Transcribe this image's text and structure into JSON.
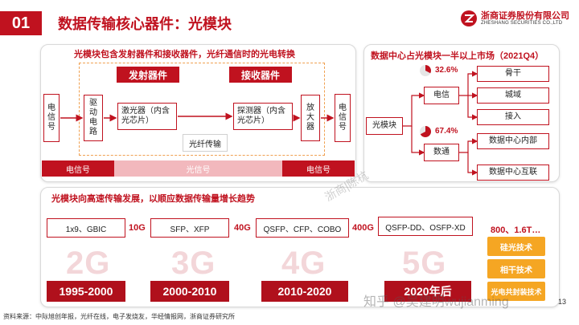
{
  "header": {
    "section_number": "01",
    "title": "数据传输核心器件：光模块",
    "brand_cn": "浙商证券股份有限公司",
    "brand_en": "ZHESHANG SECURITIES CO.,LTD",
    "colors": {
      "accent": "#c0121f",
      "light_band": "#f2b8bd",
      "orange": "#f5a623"
    },
    "logo_icon": "zheshang-logo-icon"
  },
  "diagram": {
    "title": "光模块包含发射器件和接收器件，光纤通信时的光电转换",
    "tx_label": "发射器件",
    "rx_label": "接收器件",
    "left_signal": "电信号",
    "drive_circuit": "驱动电路",
    "laser": "激光器（内含光芯片）",
    "fiber": "光纤传输",
    "detector": "探测器（内含光芯片）",
    "amplifier": "放大器",
    "right_signal": "电信号",
    "band_left": "电信号",
    "band_mid": "光信号",
    "band_right": "电信号"
  },
  "market": {
    "title": "数据中心占光模块一半以上市场（2021Q4）",
    "root": "光模块",
    "branches": [
      {
        "label": "电信",
        "percent": "32.6%",
        "share": 0.326,
        "children": [
          "骨干",
          "城域",
          "接入"
        ]
      },
      {
        "label": "数通",
        "percent": "67.4%",
        "share": 0.674,
        "children": [
          "数据中心内部",
          "数据中心互联"
        ]
      }
    ]
  },
  "evolution": {
    "title": "光模块向高速传输发展，以顺应数据传输量增长趋势",
    "products": [
      "1x9、GBIC",
      "SFP、XFP",
      "QSFP、CFP、COBO",
      "QSFP-DD、OSFP-XD"
    ],
    "speeds": [
      "10G",
      "40G",
      "400G",
      "800、1.6T…"
    ],
    "generations": [
      "2G",
      "3G",
      "4G",
      "5G"
    ],
    "years": [
      "1995-2000",
      "2000-2010",
      "2010-2020",
      "2020年后"
    ],
    "techs": [
      "硅光技术",
      "相干技术",
      "光电共封装技术"
    ]
  },
  "footer": {
    "source": "资料来源：中际旭创年报，光纤在线，电子发烧友，华经情报网，浙商证券研究所",
    "watermark": "知乎 @吴建明wujianming",
    "watermark2": "浙商|陈杭",
    "page": "13"
  }
}
